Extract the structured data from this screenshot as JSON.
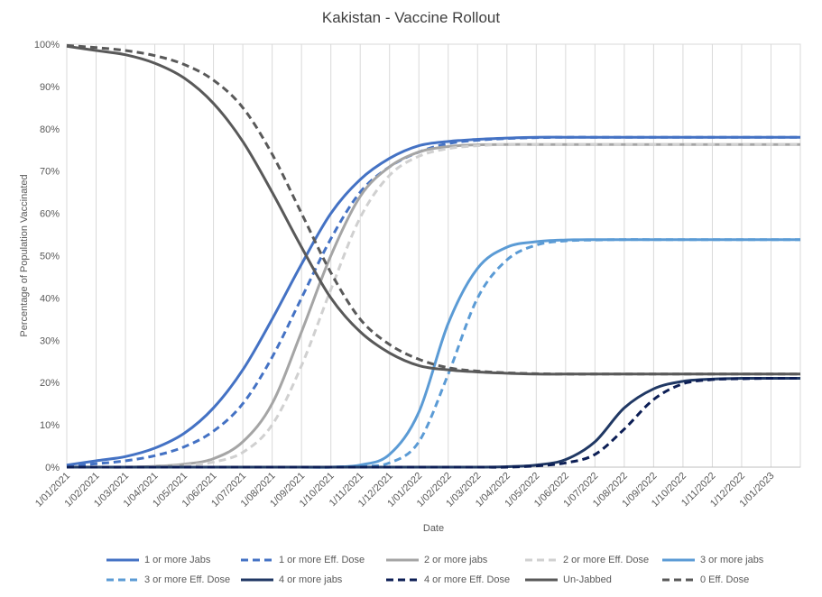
{
  "chart_data": {
    "type": "line",
    "title": "Kakistan - Vaccine Rollout",
    "xlabel": "Date",
    "ylabel": "Percentage of Population Vaccinated",
    "ylim": [
      0,
      100
    ],
    "y_ticks": [
      "0%",
      "10%",
      "20%",
      "30%",
      "40%",
      "50%",
      "60%",
      "70%",
      "80%",
      "90%",
      "100%"
    ],
    "x": [
      "1/01/2021",
      "1/02/2021",
      "1/03/2021",
      "1/04/2021",
      "1/05/2021",
      "1/06/2021",
      "1/07/2021",
      "1/08/2021",
      "1/09/2021",
      "1/10/2021",
      "1/11/2021",
      "1/12/2021",
      "1/01/2022",
      "1/02/2022",
      "1/03/2022",
      "1/04/2022",
      "1/05/2022",
      "1/06/2022",
      "1/07/2022",
      "1/08/2022",
      "1/09/2022",
      "1/10/2022",
      "1/11/2022",
      "1/12/2022",
      "1/01/2023",
      "1/02/2023"
    ],
    "x_tick_labels": [
      "1/01/2021",
      "1/02/2021",
      "1/03/2021",
      "1/04/2021",
      "1/05/2021",
      "1/06/2021",
      "1/07/2021",
      "1/08/2021",
      "1/09/2021",
      "1/10/2021",
      "1/11/2021",
      "1/12/2021",
      "1/01/2022",
      "1/02/2022",
      "1/03/2022",
      "1/04/2022",
      "1/05/2022",
      "1/06/2022",
      "1/07/2022",
      "1/08/2022",
      "1/09/2022",
      "1/10/2022",
      "1/11/2022",
      "1/12/2022",
      "1/01/2023"
    ],
    "grid": "vertical",
    "legend_position": "bottom",
    "series": [
      {
        "name": "1 or more Jabs",
        "color": "#4472c4",
        "dash": "solid",
        "values": [
          0.5,
          1.5,
          2.5,
          4.5,
          8,
          14,
          23,
          35,
          48,
          60,
          68,
          73,
          76,
          77,
          77.5,
          77.8,
          78,
          78,
          78,
          78,
          78,
          78,
          78,
          78,
          78,
          78
        ]
      },
      {
        "name": "1 or more Eff. Dose",
        "color": "#4472c4",
        "dash": "dashed",
        "values": [
          0.3,
          0.8,
          1.5,
          2.7,
          4.8,
          8.5,
          15,
          26,
          40,
          54,
          65,
          71,
          74.5,
          76.5,
          77.3,
          77.7,
          77.9,
          78,
          78,
          78,
          78,
          78,
          78,
          78,
          78,
          78
        ]
      },
      {
        "name": "2 or more jabs",
        "color": "#a5a5a5",
        "dash": "solid",
        "values": [
          0,
          0,
          0,
          0.2,
          0.7,
          2,
          6,
          15,
          32,
          50,
          64,
          71,
          74.5,
          75.8,
          76.2,
          76.3,
          76.3,
          76.3,
          76.3,
          76.3,
          76.3,
          76.3,
          76.3,
          76.3,
          76.3,
          76.3
        ]
      },
      {
        "name": "2 or more Eff. Dose",
        "color": "#d0d0d0",
        "dash": "dashed",
        "values": [
          0,
          0,
          0,
          0.1,
          0.4,
          1.2,
          3.5,
          10,
          24,
          42,
          59,
          69,
          73.5,
          75.3,
          76,
          76.3,
          76.3,
          76.3,
          76.3,
          76.3,
          76.3,
          76.3,
          76.3,
          76.3,
          76.3,
          76.3
        ]
      },
      {
        "name": "3 or more jabs",
        "color": "#5b9bd5",
        "dash": "solid",
        "values": [
          0,
          0,
          0,
          0,
          0,
          0,
          0,
          0,
          0,
          0,
          0.5,
          3,
          13,
          34,
          47,
          52,
          53.3,
          53.7,
          53.8,
          53.8,
          53.8,
          53.8,
          53.8,
          53.8,
          53.8,
          53.8
        ]
      },
      {
        "name": "3 or more Eff. Dose",
        "color": "#5b9bd5",
        "dash": "dashed",
        "values": [
          0,
          0,
          0,
          0,
          0,
          0,
          0,
          0,
          0,
          0,
          0.2,
          1,
          6,
          22,
          40,
          49,
          52.5,
          53.5,
          53.7,
          53.8,
          53.8,
          53.8,
          53.8,
          53.8,
          53.8,
          53.8
        ]
      },
      {
        "name": "4 or more jabs",
        "color": "#203864",
        "dash": "solid",
        "values": [
          0,
          0,
          0,
          0,
          0,
          0,
          0,
          0,
          0,
          0,
          0,
          0,
          0,
          0,
          0,
          0.1,
          0.5,
          1.8,
          6,
          14,
          18.5,
          20.3,
          20.8,
          21,
          21,
          21
        ]
      },
      {
        "name": "4 or more Eff. Dose",
        "color": "#0c1e55",
        "dash": "dashed",
        "values": [
          0,
          0,
          0,
          0,
          0,
          0,
          0,
          0,
          0,
          0,
          0,
          0,
          0,
          0,
          0,
          0,
          0.3,
          1,
          3,
          9,
          16,
          19.7,
          20.7,
          20.9,
          21,
          21
        ]
      },
      {
        "name": "Un-Jabbed",
        "color": "#595959",
        "dash": "solid",
        "values": [
          99.5,
          98.5,
          97.5,
          95.5,
          92,
          86,
          77,
          65,
          52,
          40,
          32,
          27,
          24,
          23,
          22.5,
          22.2,
          22,
          22,
          22,
          22,
          22,
          22,
          22,
          22,
          22,
          22
        ]
      },
      {
        "name": "0 Eff. Dose",
        "color": "#595959",
        "dash": "dashed",
        "values": [
          99.7,
          99.2,
          98.5,
          97.3,
          95.2,
          91.5,
          85,
          74,
          60,
          46,
          35,
          29,
          25.5,
          23.5,
          22.7,
          22.3,
          22.1,
          22,
          22,
          22,
          22,
          22,
          22,
          22,
          22,
          22
        ]
      }
    ]
  }
}
